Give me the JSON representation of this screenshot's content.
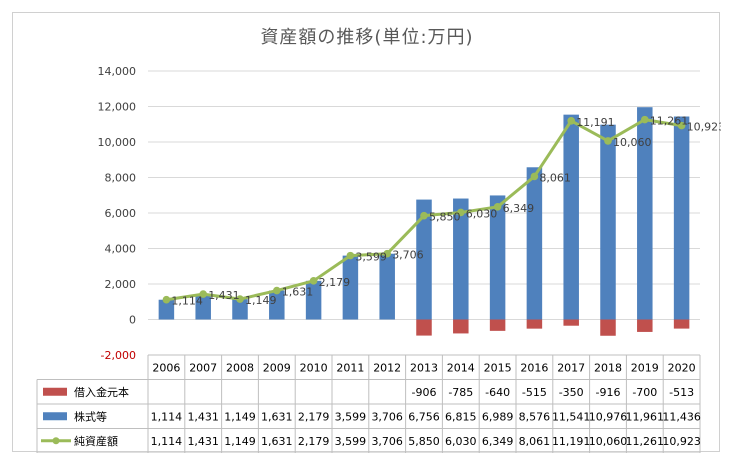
{
  "chart_data": {
    "type": "bar",
    "title": "資産額の推移(単位:万円)",
    "categories": [
      "2006",
      "2007",
      "2008",
      "2009",
      "2010",
      "2011",
      "2012",
      "2013",
      "2014",
      "2015",
      "2016",
      "2017",
      "2018",
      "2019",
      "2020"
    ],
    "ylim": [
      -2000,
      14000
    ],
    "yticks": [
      "-2,000",
      "0",
      "2,000",
      "4,000",
      "6,000",
      "8,000",
      "10,000",
      "12,000",
      "14,000"
    ],
    "grid": true,
    "legend_position": "data-table",
    "series": [
      {
        "name": "借入金元本",
        "type": "bar",
        "color": "#c0504d",
        "values": [
          null,
          null,
          null,
          null,
          null,
          null,
          null,
          -906,
          -785,
          -640,
          -515,
          -350,
          -916,
          -700,
          -513
        ],
        "labels": [
          "",
          "",
          "",
          "",
          "",
          "",
          "",
          "-906",
          "-785",
          "-640",
          "-515",
          "-350",
          "-916",
          "-700",
          "-513"
        ]
      },
      {
        "name": "株式等",
        "type": "bar",
        "color": "#4f81bd",
        "values": [
          1114,
          1431,
          1149,
          1631,
          2179,
          3599,
          3706,
          6756,
          6815,
          6989,
          8576,
          11541,
          10976,
          11961,
          11436
        ],
        "labels": [
          "1,114",
          "1,431",
          "1,149",
          "1,631",
          "2,179",
          "3,599",
          "3,706",
          "6,756",
          "6,815",
          "6,989",
          "8,576",
          "11,541",
          "10,976",
          "11,961",
          "11,436"
        ]
      },
      {
        "name": "純資産額",
        "type": "line",
        "color": "#9bbb59",
        "values": [
          1114,
          1431,
          1149,
          1631,
          2179,
          3599,
          3706,
          5850,
          6030,
          6349,
          8061,
          11191,
          10060,
          11261,
          10923
        ],
        "labels": [
          "1,114",
          "1,431",
          "1,149",
          "1,631",
          "2,179",
          "3,599",
          "3,706",
          "5,850",
          "6,030",
          "6,349",
          "8,061",
          "11,191",
          "10,060",
          "11,261",
          "10,923"
        ]
      }
    ]
  }
}
